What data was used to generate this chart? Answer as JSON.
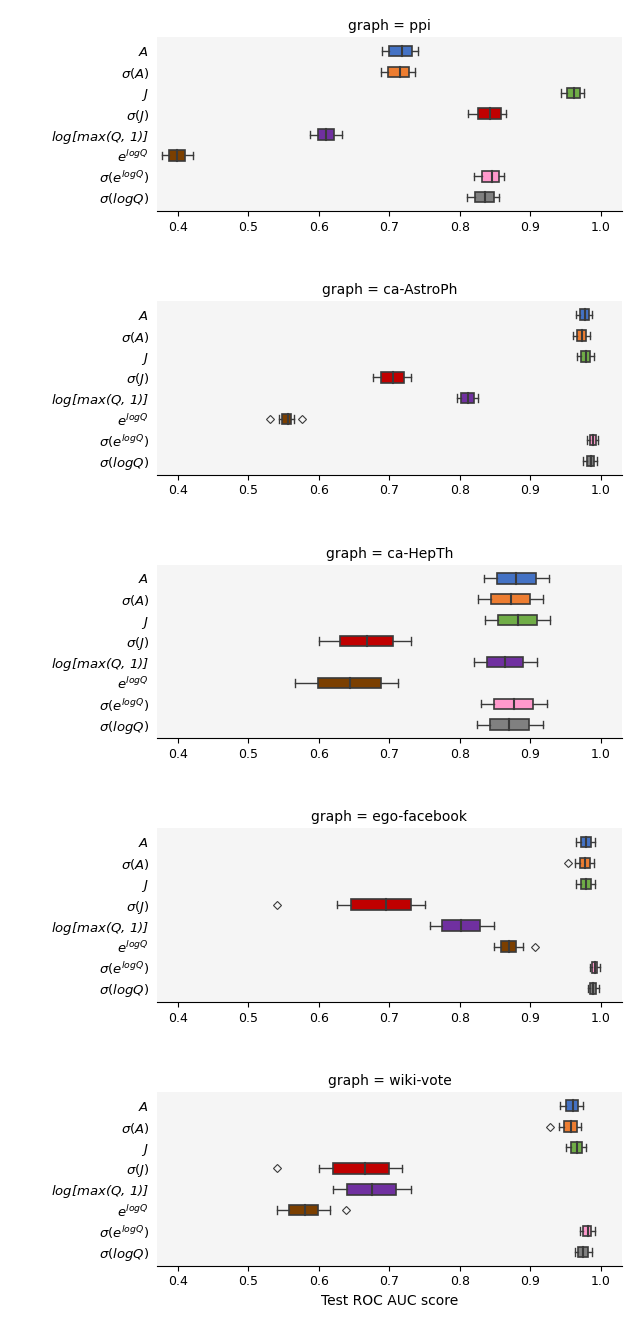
{
  "graphs": [
    "ppi",
    "ca-AstroPh",
    "ca-HepTh",
    "ego-facebook",
    "wiki-vote"
  ],
  "titles": [
    "graph = ppi",
    "graph = ca-AstroPh",
    "graph = ca-HepTh",
    "graph = ego-facebook",
    "graph = wiki-vote"
  ],
  "colors": [
    "#4472c4",
    "#ed7d31",
    "#70ad47",
    "#c00000",
    "#7030a0",
    "#7b3f00",
    "#ff99cc",
    "#808080"
  ],
  "xlabel": "Test ROC AUC score",
  "xlim": [
    0.37,
    1.03
  ],
  "xticks": [
    0.4,
    0.5,
    0.6,
    0.7,
    0.8,
    0.9,
    1.0
  ],
  "box_data": {
    "ppi": [
      {
        "q1": 0.7,
        "median": 0.718,
        "q3": 0.732,
        "whislo": 0.69,
        "whishi": 0.74,
        "fliers": []
      },
      {
        "q1": 0.698,
        "median": 0.715,
        "q3": 0.728,
        "whislo": 0.688,
        "whishi": 0.736,
        "fliers": []
      },
      {
        "q1": 0.952,
        "median": 0.962,
        "q3": 0.97,
        "whislo": 0.944,
        "whishi": 0.976,
        "fliers": []
      },
      {
        "q1": 0.825,
        "median": 0.843,
        "q3": 0.858,
        "whislo": 0.812,
        "whishi": 0.866,
        "fliers": []
      },
      {
        "q1": 0.598,
        "median": 0.61,
        "q3": 0.622,
        "whislo": 0.588,
        "whishi": 0.632,
        "fliers": []
      },
      {
        "q1": 0.388,
        "median": 0.398,
        "q3": 0.41,
        "whislo": 0.378,
        "whishi": 0.422,
        "fliers": []
      },
      {
        "q1": 0.832,
        "median": 0.845,
        "q3": 0.856,
        "whislo": 0.82,
        "whishi": 0.862,
        "fliers": []
      },
      {
        "q1": 0.822,
        "median": 0.835,
        "q3": 0.848,
        "whislo": 0.81,
        "whishi": 0.856,
        "fliers": []
      }
    ],
    "ca-AstroPh": [
      {
        "q1": 0.971,
        "median": 0.978,
        "q3": 0.983,
        "whislo": 0.965,
        "whishi": 0.988,
        "fliers": []
      },
      {
        "q1": 0.966,
        "median": 0.973,
        "q3": 0.979,
        "whislo": 0.96,
        "whishi": 0.984,
        "fliers": []
      },
      {
        "q1": 0.972,
        "median": 0.979,
        "q3": 0.984,
        "whislo": 0.966,
        "whishi": 0.99,
        "fliers": []
      },
      {
        "q1": 0.688,
        "median": 0.705,
        "q3": 0.72,
        "whislo": 0.676,
        "whishi": 0.73,
        "fliers": []
      },
      {
        "q1": 0.802,
        "median": 0.812,
        "q3": 0.82,
        "whislo": 0.796,
        "whishi": 0.826,
        "fliers": []
      },
      {
        "q1": 0.548,
        "median": 0.556,
        "q3": 0.56,
        "whislo": 0.544,
        "whishi": 0.564,
        "fliers": [
          0.53,
          0.576
        ]
      },
      {
        "q1": 0.984,
        "median": 0.989,
        "q3": 0.993,
        "whislo": 0.98,
        "whishi": 0.996,
        "fliers": []
      },
      {
        "q1": 0.98,
        "median": 0.986,
        "q3": 0.99,
        "whislo": 0.975,
        "whishi": 0.994,
        "fliers": []
      }
    ],
    "ca-HepTh": [
      {
        "q1": 0.852,
        "median": 0.88,
        "q3": 0.908,
        "whislo": 0.834,
        "whishi": 0.926,
        "fliers": []
      },
      {
        "q1": 0.844,
        "median": 0.872,
        "q3": 0.9,
        "whislo": 0.826,
        "whishi": 0.918,
        "fliers": []
      },
      {
        "q1": 0.854,
        "median": 0.882,
        "q3": 0.91,
        "whislo": 0.836,
        "whishi": 0.928,
        "fliers": []
      },
      {
        "q1": 0.63,
        "median": 0.668,
        "q3": 0.705,
        "whislo": 0.6,
        "whishi": 0.73,
        "fliers": []
      },
      {
        "q1": 0.838,
        "median": 0.864,
        "q3": 0.89,
        "whislo": 0.82,
        "whishi": 0.91,
        "fliers": []
      },
      {
        "q1": 0.598,
        "median": 0.644,
        "q3": 0.688,
        "whislo": 0.566,
        "whishi": 0.712,
        "fliers": []
      },
      {
        "q1": 0.848,
        "median": 0.876,
        "q3": 0.904,
        "whislo": 0.83,
        "whishi": 0.924,
        "fliers": []
      },
      {
        "q1": 0.842,
        "median": 0.87,
        "q3": 0.898,
        "whislo": 0.824,
        "whishi": 0.918,
        "fliers": []
      }
    ],
    "ego-facebook": [
      {
        "q1": 0.972,
        "median": 0.979,
        "q3": 0.986,
        "whislo": 0.965,
        "whishi": 0.992,
        "fliers": []
      },
      {
        "q1": 0.97,
        "median": 0.977,
        "q3": 0.984,
        "whislo": 0.963,
        "whishi": 0.99,
        "fliers": [
          0.953
        ]
      },
      {
        "q1": 0.972,
        "median": 0.979,
        "q3": 0.986,
        "whislo": 0.965,
        "whishi": 0.992,
        "fliers": []
      },
      {
        "q1": 0.645,
        "median": 0.695,
        "q3": 0.73,
        "whislo": 0.625,
        "whishi": 0.75,
        "fliers": [
          0.54
        ]
      },
      {
        "q1": 0.775,
        "median": 0.802,
        "q3": 0.828,
        "whislo": 0.758,
        "whishi": 0.848,
        "fliers": []
      },
      {
        "q1": 0.858,
        "median": 0.87,
        "q3": 0.88,
        "whislo": 0.848,
        "whishi": 0.89,
        "fliers": [
          0.906
        ]
      },
      {
        "q1": 0.988,
        "median": 0.992,
        "q3": 0.995,
        "whislo": 0.984,
        "whishi": 0.998,
        "fliers": []
      },
      {
        "q1": 0.985,
        "median": 0.989,
        "q3": 0.993,
        "whislo": 0.981,
        "whishi": 0.997,
        "fliers": []
      }
    ],
    "wiki-vote": [
      {
        "q1": 0.95,
        "median": 0.96,
        "q3": 0.968,
        "whislo": 0.942,
        "whishi": 0.975,
        "fliers": []
      },
      {
        "q1": 0.948,
        "median": 0.957,
        "q3": 0.966,
        "whislo": 0.94,
        "whishi": 0.972,
        "fliers": [
          0.928
        ]
      },
      {
        "q1": 0.958,
        "median": 0.966,
        "q3": 0.973,
        "whislo": 0.95,
        "whishi": 0.979,
        "fliers": []
      },
      {
        "q1": 0.62,
        "median": 0.665,
        "q3": 0.7,
        "whislo": 0.6,
        "whishi": 0.718,
        "fliers": [
          0.54
        ]
      },
      {
        "q1": 0.64,
        "median": 0.675,
        "q3": 0.71,
        "whislo": 0.62,
        "whishi": 0.73,
        "fliers": []
      },
      {
        "q1": 0.558,
        "median": 0.58,
        "q3": 0.598,
        "whislo": 0.54,
        "whishi": 0.616,
        "fliers": [
          0.638
        ]
      },
      {
        "q1": 0.975,
        "median": 0.981,
        "q3": 0.986,
        "whislo": 0.97,
        "whishi": 0.991,
        "fliers": []
      },
      {
        "q1": 0.968,
        "median": 0.975,
        "q3": 0.982,
        "whislo": 0.963,
        "whishi": 0.988,
        "fliers": []
      }
    ]
  }
}
